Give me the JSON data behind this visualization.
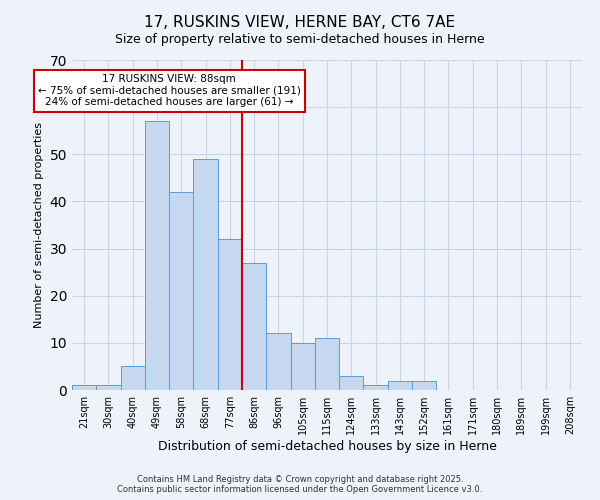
{
  "title": "17, RUSKINS VIEW, HERNE BAY, CT6 7AE",
  "subtitle": "Size of property relative to semi-detached houses in Herne",
  "xlabel": "Distribution of semi-detached houses by size in Herne",
  "ylabel": "Number of semi-detached properties",
  "bar_labels": [
    "21sqm",
    "30sqm",
    "40sqm",
    "49sqm",
    "58sqm",
    "68sqm",
    "77sqm",
    "86sqm",
    "96sqm",
    "105sqm",
    "115sqm",
    "124sqm",
    "133sqm",
    "143sqm",
    "152sqm",
    "161sqm",
    "171sqm",
    "180sqm",
    "189sqm",
    "199sqm",
    "208sqm"
  ],
  "bar_values": [
    1,
    1,
    5,
    57,
    42,
    49,
    32,
    27,
    12,
    10,
    11,
    3,
    1,
    2,
    2,
    0,
    0,
    0,
    0,
    0,
    0
  ],
  "bar_color": "#c5d8f0",
  "bar_edge_color": "#5b9bd5",
  "vline_x_index": 7,
  "vline_color": "#cc0000",
  "ylim": [
    0,
    70
  ],
  "annotation_title": "17 RUSKINS VIEW: 88sqm",
  "annotation_line1": "← 75% of semi-detached houses are smaller (191)",
  "annotation_line2": "24% of semi-detached houses are larger (61) →",
  "annotation_box_color": "#cc0000",
  "footer1": "Contains HM Land Registry data © Crown copyright and database right 2025.",
  "footer2": "Contains public sector information licensed under the Open Government Licence v3.0.",
  "bg_color": "#eef2fb",
  "grid_color": "#c8d4e8",
  "title_fontsize": 11,
  "subtitle_fontsize": 9,
  "xlabel_fontsize": 9,
  "ylabel_fontsize": 8,
  "tick_fontsize": 7,
  "annotation_fontsize": 7.5,
  "footer_fontsize": 6
}
